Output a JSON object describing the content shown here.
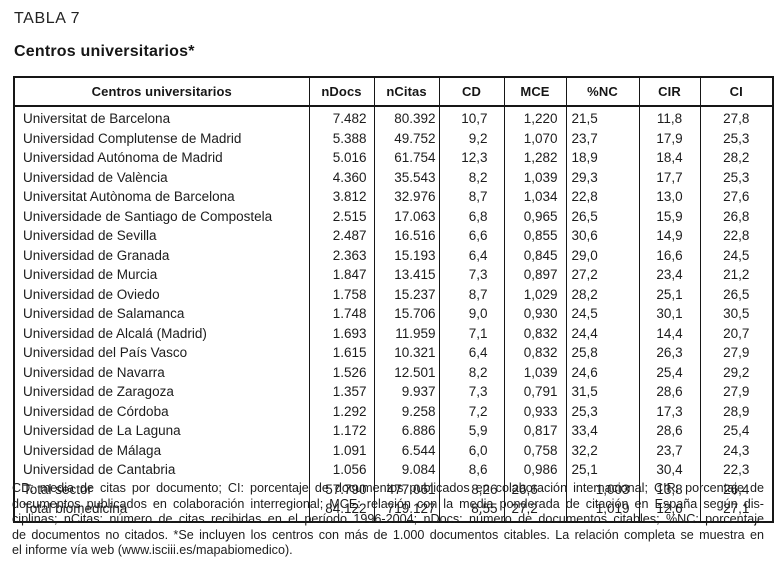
{
  "title": "TABLA 7",
  "subtitle": "Centros universitarios*",
  "colors": {
    "ink": "#1a1a1a",
    "background": "#ffffff"
  },
  "table": {
    "headers": [
      "Centros universitarios",
      "nDocs",
      "nCitas",
      "CD",
      "MCE",
      "%NC",
      "CIR",
      "CI"
    ],
    "rows": [
      [
        "Universitat de Barcelona",
        "7.482",
        "80.392",
        "10,7",
        "1,220",
        "21,5",
        "11,8",
        "27,8"
      ],
      [
        "Universidad Complutense de Madrid",
        "5.388",
        "49.752",
        "9,2",
        "1,070",
        "23,7",
        "17,9",
        "25,3"
      ],
      [
        "Universidad Autónoma de Madrid",
        "5.016",
        "61.754",
        "12,3",
        "1,282",
        "18,9",
        "18,4",
        "28,2"
      ],
      [
        "Universidad de València",
        "4.360",
        "35.543",
        "8,2",
        "1,039",
        "29,3",
        "17,7",
        "25,3"
      ],
      [
        "Universitat Autònoma de Barcelona",
        "3.812",
        "32.976",
        "8,7",
        "1,034",
        "22,8",
        "13,0",
        "27,6"
      ],
      [
        "Universidade de Santiago de Compostela",
        "2.515",
        "17.063",
        "6,8",
        "0,965",
        "26,5",
        "15,9",
        "26,8"
      ],
      [
        "Universidad de Sevilla",
        "2.487",
        "16.516",
        "6,6",
        "0,855",
        "30,6",
        "14,9",
        "22,8"
      ],
      [
        "Universidad de Granada",
        "2.363",
        "15.193",
        "6,4",
        "0,845",
        "29,0",
        "16,6",
        "24,5"
      ],
      [
        "Universidad de Murcia",
        "1.847",
        "13.415",
        "7,3",
        "0,897",
        "27,2",
        "23,4",
        "21,2"
      ],
      [
        "Universidad de Oviedo",
        "1.758",
        "15.237",
        "8,7",
        "1,029",
        "28,2",
        "25,1",
        "26,5"
      ],
      [
        "Universidad de Salamanca",
        "1.748",
        "15.706",
        "9,0",
        "0,930",
        "24,5",
        "30,1",
        "30,5"
      ],
      [
        "Universidad de Alcalá (Madrid)",
        "1.693",
        "11.959",
        "7,1",
        "0,832",
        "24,4",
        "14,4",
        "20,7"
      ],
      [
        "Universidad del País Vasco",
        "1.615",
        "10.321",
        "6,4",
        "0,832",
        "25,8",
        "26,3",
        "27,9"
      ],
      [
        "Universidad de Navarra",
        "1.526",
        "12.501",
        "8,2",
        "1,039",
        "24,6",
        "25,4",
        "29,2"
      ],
      [
        "Universidad de Zaragoza",
        "1.357",
        "9.937",
        "7,3",
        "0,791",
        "31,5",
        "28,6",
        "27,9"
      ],
      [
        "Universidad de Córdoba",
        "1.292",
        "9.258",
        "7,2",
        "0,933",
        "25,3",
        "17,3",
        "28,9"
      ],
      [
        "Universidad de La Laguna",
        "1.172",
        "6.886",
        "5,9",
        "0,817",
        "33,4",
        "28,6",
        "25,4"
      ],
      [
        "Universidad de Málaga",
        "1.091",
        "6.544",
        "6,0",
        "0,758",
        "32,2",
        "23,7",
        "24,3"
      ],
      [
        "Universidad de Cantabria",
        "1.056",
        "9.084",
        "8,6",
        "0,986",
        "25,1",
        "30,4",
        "22,3"
      ],
      [
        "Total sector",
        "57.790",
        "477.061",
        "8,26",
        "26,6",
        "1,003",
        "13,8",
        "26,4"
      ],
      [
        "Total biomedicina",
        "84.122",
        "719.127",
        "8,55",
        "27,2",
        "1,019",
        "12,6",
        "27,1"
      ]
    ],
    "total_row_labels": [
      "Total sector",
      "Total biomedicina"
    ]
  },
  "footnote_lines": [
    "CD: media de citas por documento; CI: porcentaje de documentos publicados en colaboración internacional; CIR: porcentaje de",
    "documentos publicados en colaboración interregional; MCE: relación con la media ponderada de citación en España según dis-",
    "ciplinas; nCitas: número de citas recibidas en el período 1996-2004; nDocs: número de documentos citables; %NC: porcentaje",
    "de documentos no citados. *Se incluyen los centros con más de 1.000 documentos citables. La relación completa se muestra en",
    "el informe vía web (www.isciii.es/mapabiomedico)."
  ]
}
